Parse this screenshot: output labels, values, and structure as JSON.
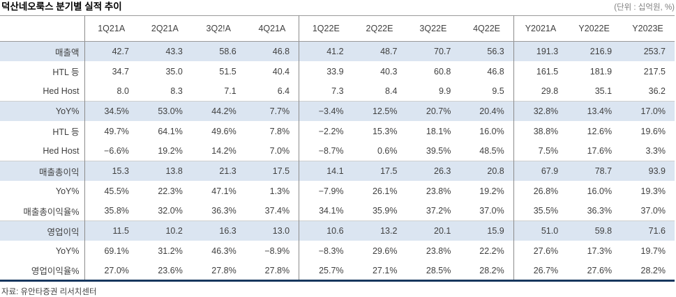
{
  "title": "덕산네오룩스 분기별 실적 추이",
  "unit_note": "(단위 : 십억원, %)",
  "source": "자료: 유안타증권 리서치센터",
  "colors": {
    "row_highlight": "#dbe5f1",
    "bottom_border_navy": "#17375e"
  },
  "table": {
    "columns": [
      "1Q21A",
      "2Q21A",
      "3Q2!A",
      "4Q21A",
      "1Q22E",
      "2Q22E",
      "3Q22E",
      "4Q22E",
      "Y2021A",
      "Y2022E",
      "Y2023E"
    ],
    "group_separator_after_columns": [
      "4Q21A",
      "4Q22E"
    ],
    "rows": [
      {
        "label": "매출액",
        "highlight": true,
        "values": [
          "42.7",
          "43.3",
          "58.6",
          "46.8",
          "41.2",
          "48.7",
          "70.7",
          "56.3",
          "191.3",
          "216.9",
          "253.7"
        ]
      },
      {
        "label": "HTL 등",
        "highlight": false,
        "values": [
          "34.7",
          "35.0",
          "51.5",
          "40.4",
          "33.9",
          "40.3",
          "60.8",
          "46.8",
          "161.5",
          "181.9",
          "217.5"
        ]
      },
      {
        "label": "Hed Host",
        "highlight": false,
        "values": [
          "8.0",
          "8.3",
          "7.1",
          "6.4",
          "7.3",
          "8.4",
          "9.9",
          "9.5",
          "29.8",
          "35.1",
          "36.2"
        ]
      },
      {
        "label": "YoY%",
        "highlight": true,
        "values": [
          "34.5%",
          "53.0%",
          "44.2%",
          "7.7%",
          "−3.4%",
          "12.5%",
          "20.7%",
          "20.4%",
          "32.8%",
          "13.4%",
          "17.0%"
        ]
      },
      {
        "label": "HTL 등",
        "highlight": false,
        "values": [
          "49.7%",
          "64.1%",
          "49.6%",
          "7.8%",
          "−2.2%",
          "15.3%",
          "18.1%",
          "16.0%",
          "38.8%",
          "12.6%",
          "19.6%"
        ]
      },
      {
        "label": "Hed Host",
        "highlight": false,
        "values": [
          "−6.6%",
          "19.2%",
          "14.2%",
          "7.0%",
          "−8.7%",
          "0.6%",
          "39.5%",
          "48.5%",
          "7.5%",
          "17.6%",
          "3.3%"
        ]
      },
      {
        "label": "매출총이익",
        "highlight": true,
        "values": [
          "15.3",
          "13.8",
          "21.3",
          "17.5",
          "14.1",
          "17.5",
          "26.3",
          "20.8",
          "67.9",
          "78.7",
          "93.9"
        ]
      },
      {
        "label": "YoY%",
        "highlight": false,
        "values": [
          "45.5%",
          "22.3%",
          "47.1%",
          "1.3%",
          "−7.9%",
          "26.1%",
          "23.8%",
          "19.2%",
          "26.8%",
          "16.0%",
          "19.3%"
        ]
      },
      {
        "label": "매출총이익율%",
        "highlight": false,
        "values": [
          "35.8%",
          "32.0%",
          "36.3%",
          "37.4%",
          "34.1%",
          "35.9%",
          "37.2%",
          "37.0%",
          "35.5%",
          "36.3%",
          "37.0%"
        ]
      },
      {
        "label": "영업이익",
        "highlight": true,
        "values": [
          "11.5",
          "10.2",
          "16.3",
          "13.0",
          "10.6",
          "13.2",
          "20.1",
          "15.9",
          "51.0",
          "59.8",
          "71.6"
        ]
      },
      {
        "label": "YoY%",
        "highlight": false,
        "values": [
          "69.1%",
          "31.2%",
          "46.3%",
          "−8.9%",
          "−8.3%",
          "29.6%",
          "23.8%",
          "22.2%",
          "27.6%",
          "17.3%",
          "19.7%"
        ]
      },
      {
        "label": "영업이익율%",
        "highlight": false,
        "values": [
          "27.0%",
          "23.6%",
          "27.8%",
          "27.8%",
          "25.7%",
          "27.1%",
          "28.5%",
          "28.2%",
          "26.7%",
          "27.6%",
          "28.2%"
        ]
      }
    ]
  }
}
